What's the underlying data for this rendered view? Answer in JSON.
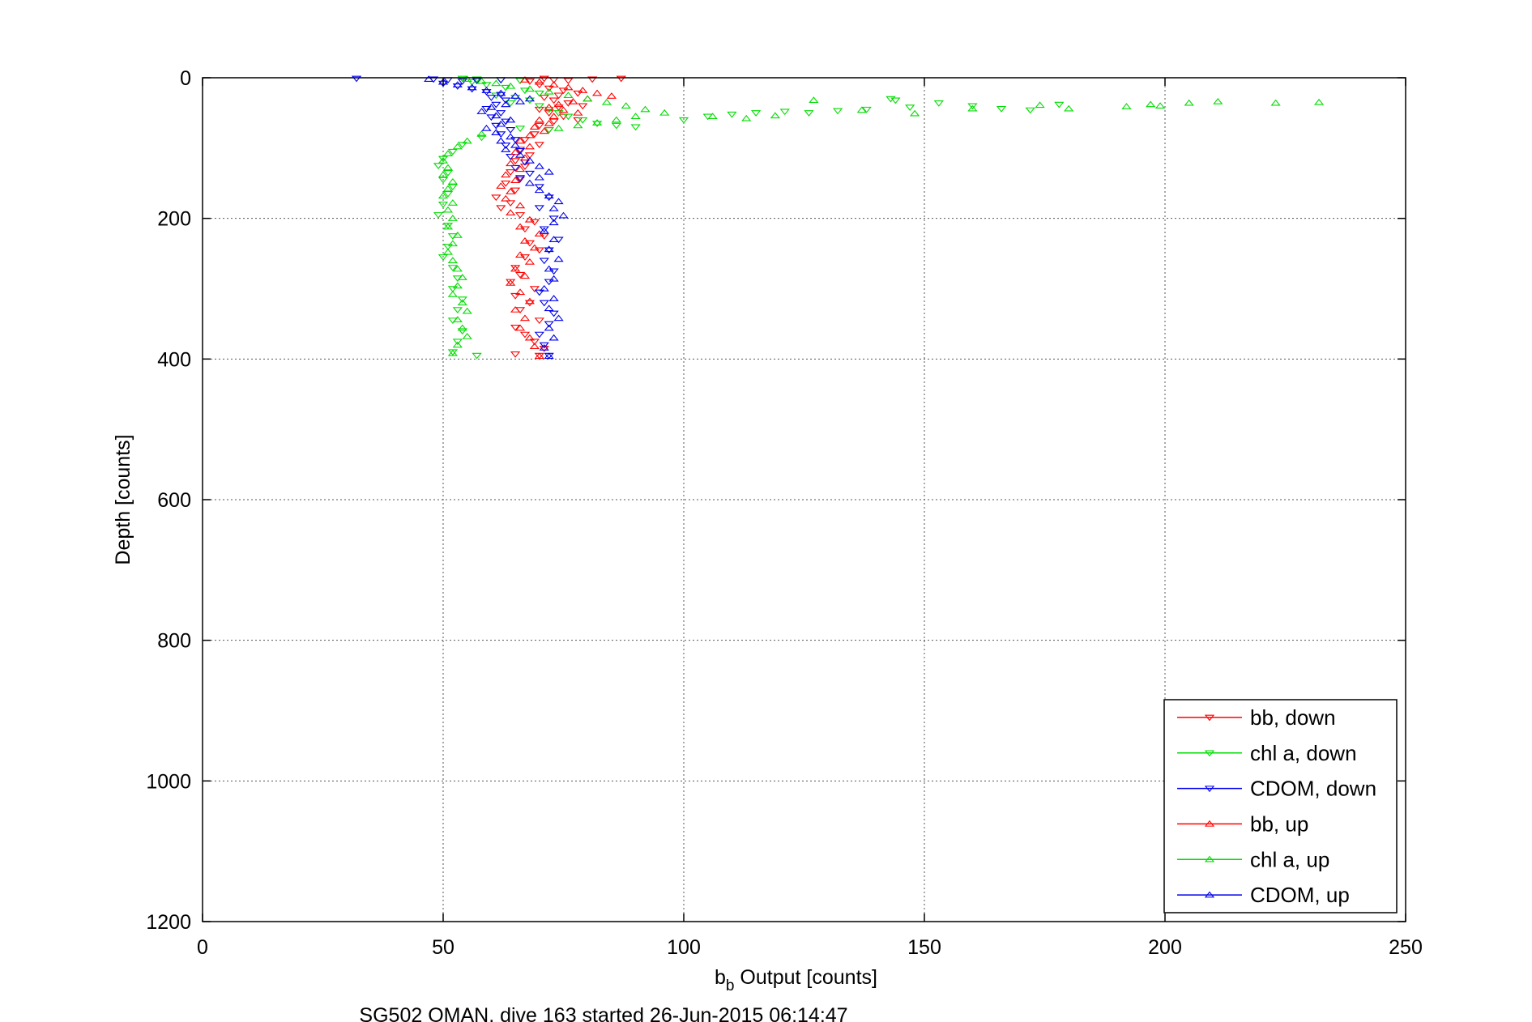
{
  "chart_data": {
    "type": "scatter",
    "xlabel_main": "b",
    "xlabel_sub": "b",
    "xlabel_rest": " Output [counts]",
    "ylabel": "Depth [counts]",
    "caption": "SG502 OMAN, dive 163 started 26-Jun-2015 06:14:47",
    "xlim": [
      0,
      250
    ],
    "ylim": [
      1200,
      0
    ],
    "y_reversed": true,
    "grid": true,
    "legend_position": "bottom-right",
    "x_ticks": [
      0,
      50,
      100,
      150,
      200,
      250
    ],
    "y_ticks": [
      0,
      200,
      400,
      600,
      800,
      1000,
      1200
    ],
    "series": [
      {
        "name": "bb, down",
        "color": "#ff0000",
        "marker": "triangle-down",
        "points": [
          [
            71,
            1
          ],
          [
            73,
            3
          ],
          [
            76,
            4
          ],
          [
            81,
            2
          ],
          [
            87,
            1
          ],
          [
            68,
            5
          ],
          [
            70,
            10
          ],
          [
            72,
            15
          ],
          [
            75,
            18
          ],
          [
            78,
            22
          ],
          [
            74,
            25
          ],
          [
            71,
            28
          ],
          [
            73,
            32
          ],
          [
            76,
            36
          ],
          [
            79,
            40
          ],
          [
            74,
            42
          ],
          [
            70,
            45
          ],
          [
            72,
            50
          ],
          [
            75,
            55
          ],
          [
            78,
            60
          ],
          [
            73,
            62
          ],
          [
            70,
            68
          ],
          [
            72,
            74
          ],
          [
            69,
            80
          ],
          [
            67,
            88
          ],
          [
            70,
            95
          ],
          [
            66,
            102
          ],
          [
            68,
            110
          ],
          [
            65,
            118
          ],
          [
            67,
            126
          ],
          [
            64,
            134
          ],
          [
            66,
            142
          ],
          [
            63,
            150
          ],
          [
            65,
            160
          ],
          [
            61,
            170
          ],
          [
            64,
            178
          ],
          [
            62,
            185
          ],
          [
            66,
            195
          ],
          [
            69,
            205
          ],
          [
            67,
            215
          ],
          [
            71,
            225
          ],
          [
            68,
            235
          ],
          [
            70,
            245
          ],
          [
            67,
            255
          ],
          [
            65,
            270
          ],
          [
            66,
            280
          ],
          [
            64,
            290
          ],
          [
            69,
            300
          ],
          [
            65,
            310
          ],
          [
            68,
            320
          ],
          [
            66,
            330
          ],
          [
            70,
            345
          ],
          [
            65,
            355
          ],
          [
            67,
            365
          ],
          [
            69,
            375
          ],
          [
            71,
            385
          ],
          [
            65,
            393
          ],
          [
            70,
            395
          ]
        ]
      },
      {
        "name": "chl a, down",
        "color": "#00dd00",
        "marker": "triangle-down",
        "points": [
          [
            54,
            1
          ],
          [
            57,
            2
          ],
          [
            62,
            3
          ],
          [
            66,
            4
          ],
          [
            56,
            6
          ],
          [
            59,
            10
          ],
          [
            63,
            14
          ],
          [
            67,
            18
          ],
          [
            70,
            22
          ],
          [
            61,
            25
          ],
          [
            65,
            28
          ],
          [
            68,
            32
          ],
          [
            64,
            36
          ],
          [
            70,
            40
          ],
          [
            72,
            45
          ],
          [
            74,
            50
          ],
          [
            76,
            55
          ],
          [
            79,
            60
          ],
          [
            82,
            65
          ],
          [
            86,
            68
          ],
          [
            90,
            70
          ],
          [
            66,
            72
          ],
          [
            72,
            74
          ],
          [
            58,
            85
          ],
          [
            54,
            95
          ],
          [
            52,
            105
          ],
          [
            50,
            115
          ],
          [
            49,
            125
          ],
          [
            51,
            135
          ],
          [
            50,
            145
          ],
          [
            52,
            155
          ],
          [
            51,
            165
          ],
          [
            50,
            180
          ],
          [
            49,
            195
          ],
          [
            51,
            210
          ],
          [
            52,
            225
          ],
          [
            51,
            240
          ],
          [
            50,
            255
          ],
          [
            52,
            270
          ],
          [
            53,
            285
          ],
          [
            52,
            300
          ],
          [
            54,
            315
          ],
          [
            53,
            330
          ],
          [
            52,
            345
          ],
          [
            54,
            360
          ],
          [
            53,
            375
          ],
          [
            52,
            390
          ],
          [
            57,
            395
          ],
          [
            100,
            60
          ],
          [
            105,
            55
          ],
          [
            110,
            52
          ],
          [
            115,
            50
          ],
          [
            121,
            48
          ],
          [
            126,
            50
          ],
          [
            132,
            47
          ],
          [
            138,
            45
          ],
          [
            147,
            42
          ],
          [
            153,
            36
          ],
          [
            160,
            40
          ],
          [
            166,
            44
          ],
          [
            172,
            46
          ],
          [
            178,
            38
          ],
          [
            143,
            30
          ],
          [
            144,
            32
          ]
        ]
      },
      {
        "name": "CDOM, down",
        "color": "#0000ee",
        "marker": "triangle-down",
        "points": [
          [
            32,
            1
          ],
          [
            48,
            2
          ],
          [
            51,
            3
          ],
          [
            54,
            5
          ],
          [
            57,
            4
          ],
          [
            62,
            3
          ],
          [
            50,
            8
          ],
          [
            53,
            12
          ],
          [
            56,
            16
          ],
          [
            59,
            20
          ],
          [
            62,
            24
          ],
          [
            60,
            28
          ],
          [
            63,
            32
          ],
          [
            61,
            38
          ],
          [
            59,
            44
          ],
          [
            62,
            50
          ],
          [
            60,
            56
          ],
          [
            63,
            62
          ],
          [
            61,
            68
          ],
          [
            64,
            74
          ],
          [
            62,
            80
          ],
          [
            65,
            88
          ],
          [
            63,
            96
          ],
          [
            66,
            104
          ],
          [
            64,
            112
          ],
          [
            67,
            120
          ],
          [
            65,
            128
          ],
          [
            68,
            136
          ],
          [
            66,
            144
          ],
          [
            70,
            155
          ],
          [
            72,
            170
          ],
          [
            70,
            185
          ],
          [
            73,
            200
          ],
          [
            71,
            215
          ],
          [
            74,
            230
          ],
          [
            72,
            245
          ],
          [
            71,
            260
          ],
          [
            73,
            275
          ],
          [
            72,
            290
          ],
          [
            70,
            305
          ],
          [
            71,
            320
          ],
          [
            73,
            335
          ],
          [
            72,
            350
          ],
          [
            70,
            365
          ],
          [
            71,
            380
          ],
          [
            72,
            395
          ]
        ]
      },
      {
        "name": "bb, up",
        "color": "#ff0000",
        "marker": "triangle-up",
        "points": [
          [
            67,
            3
          ],
          [
            70,
            6
          ],
          [
            73,
            10
          ],
          [
            76,
            14
          ],
          [
            79,
            18
          ],
          [
            82,
            22
          ],
          [
            85,
            26
          ],
          [
            80,
            30
          ],
          [
            77,
            34
          ],
          [
            74,
            38
          ],
          [
            72,
            42
          ],
          [
            75,
            46
          ],
          [
            78,
            50
          ],
          [
            73,
            55
          ],
          [
            70,
            60
          ],
          [
            72,
            65
          ],
          [
            69,
            70
          ],
          [
            71,
            76
          ],
          [
            68,
            82
          ],
          [
            66,
            90
          ],
          [
            68,
            98
          ],
          [
            65,
            106
          ],
          [
            67,
            114
          ],
          [
            64,
            122
          ],
          [
            66,
            130
          ],
          [
            63,
            138
          ],
          [
            65,
            146
          ],
          [
            62,
            154
          ],
          [
            64,
            162
          ],
          [
            63,
            172
          ],
          [
            66,
            182
          ],
          [
            64,
            192
          ],
          [
            68,
            202
          ],
          [
            66,
            212
          ],
          [
            70,
            222
          ],
          [
            67,
            232
          ],
          [
            69,
            242
          ],
          [
            66,
            252
          ],
          [
            68,
            262
          ],
          [
            65,
            272
          ],
          [
            67,
            282
          ],
          [
            64,
            292
          ],
          [
            66,
            305
          ],
          [
            68,
            318
          ],
          [
            65,
            330
          ],
          [
            67,
            342
          ],
          [
            66,
            356
          ],
          [
            68,
            370
          ],
          [
            69,
            382
          ],
          [
            70,
            396
          ]
        ]
      },
      {
        "name": "chl a, up",
        "color": "#00dd00",
        "marker": "triangle-up",
        "points": [
          [
            55,
            2
          ],
          [
            58,
            5
          ],
          [
            61,
            8
          ],
          [
            64,
            12
          ],
          [
            68,
            16
          ],
          [
            72,
            20
          ],
          [
            76,
            25
          ],
          [
            80,
            30
          ],
          [
            84,
            35
          ],
          [
            88,
            40
          ],
          [
            92,
            45
          ],
          [
            96,
            50
          ],
          [
            90,
            55
          ],
          [
            86,
            60
          ],
          [
            82,
            64
          ],
          [
            78,
            68
          ],
          [
            74,
            72
          ],
          [
            58,
            80
          ],
          [
            55,
            90
          ],
          [
            53,
            98
          ],
          [
            51,
            108
          ],
          [
            50,
            118
          ],
          [
            51,
            128
          ],
          [
            50,
            138
          ],
          [
            52,
            148
          ],
          [
            51,
            158
          ],
          [
            50,
            168
          ],
          [
            52,
            178
          ],
          [
            51,
            188
          ],
          [
            52,
            200
          ],
          [
            51,
            212
          ],
          [
            53,
            224
          ],
          [
            52,
            236
          ],
          [
            51,
            248
          ],
          [
            52,
            260
          ],
          [
            53,
            272
          ],
          [
            54,
            284
          ],
          [
            53,
            296
          ],
          [
            52,
            308
          ],
          [
            54,
            320
          ],
          [
            55,
            332
          ],
          [
            53,
            344
          ],
          [
            54,
            356
          ],
          [
            55,
            368
          ],
          [
            53,
            380
          ],
          [
            52,
            392
          ],
          [
            106,
            55
          ],
          [
            113,
            58
          ],
          [
            119,
            54
          ],
          [
            127,
            32
          ],
          [
            137,
            46
          ],
          [
            148,
            51
          ],
          [
            160,
            44
          ],
          [
            174,
            39
          ],
          [
            180,
            44
          ],
          [
            192,
            41
          ],
          [
            197,
            38
          ],
          [
            199,
            40
          ],
          [
            205,
            36
          ],
          [
            211,
            34
          ],
          [
            223,
            36
          ],
          [
            232,
            35
          ]
        ]
      },
      {
        "name": "CDOM, up",
        "color": "#0000ee",
        "marker": "triangle-up",
        "points": [
          [
            47,
            2
          ],
          [
            50,
            6
          ],
          [
            53,
            10
          ],
          [
            56,
            14
          ],
          [
            59,
            18
          ],
          [
            62,
            22
          ],
          [
            65,
            26
          ],
          [
            68,
            30
          ],
          [
            66,
            34
          ],
          [
            63,
            38
          ],
          [
            60,
            42
          ],
          [
            58,
            48
          ],
          [
            61,
            54
          ],
          [
            64,
            60
          ],
          [
            62,
            66
          ],
          [
            59,
            72
          ],
          [
            61,
            78
          ],
          [
            64,
            84
          ],
          [
            62,
            90
          ],
          [
            65,
            96
          ],
          [
            63,
            102
          ],
          [
            66,
            110
          ],
          [
            68,
            118
          ],
          [
            70,
            126
          ],
          [
            72,
            134
          ],
          [
            70,
            142
          ],
          [
            68,
            150
          ],
          [
            70,
            160
          ],
          [
            72,
            168
          ],
          [
            74,
            176
          ],
          [
            73,
            186
          ],
          [
            75,
            196
          ],
          [
            73,
            206
          ],
          [
            71,
            218
          ],
          [
            73,
            230
          ],
          [
            72,
            244
          ],
          [
            74,
            258
          ],
          [
            72,
            272
          ],
          [
            73,
            286
          ],
          [
            71,
            300
          ],
          [
            73,
            314
          ],
          [
            72,
            328
          ],
          [
            74,
            342
          ],
          [
            72,
            356
          ],
          [
            73,
            370
          ],
          [
            71,
            384
          ],
          [
            72,
            396
          ]
        ]
      }
    ]
  }
}
